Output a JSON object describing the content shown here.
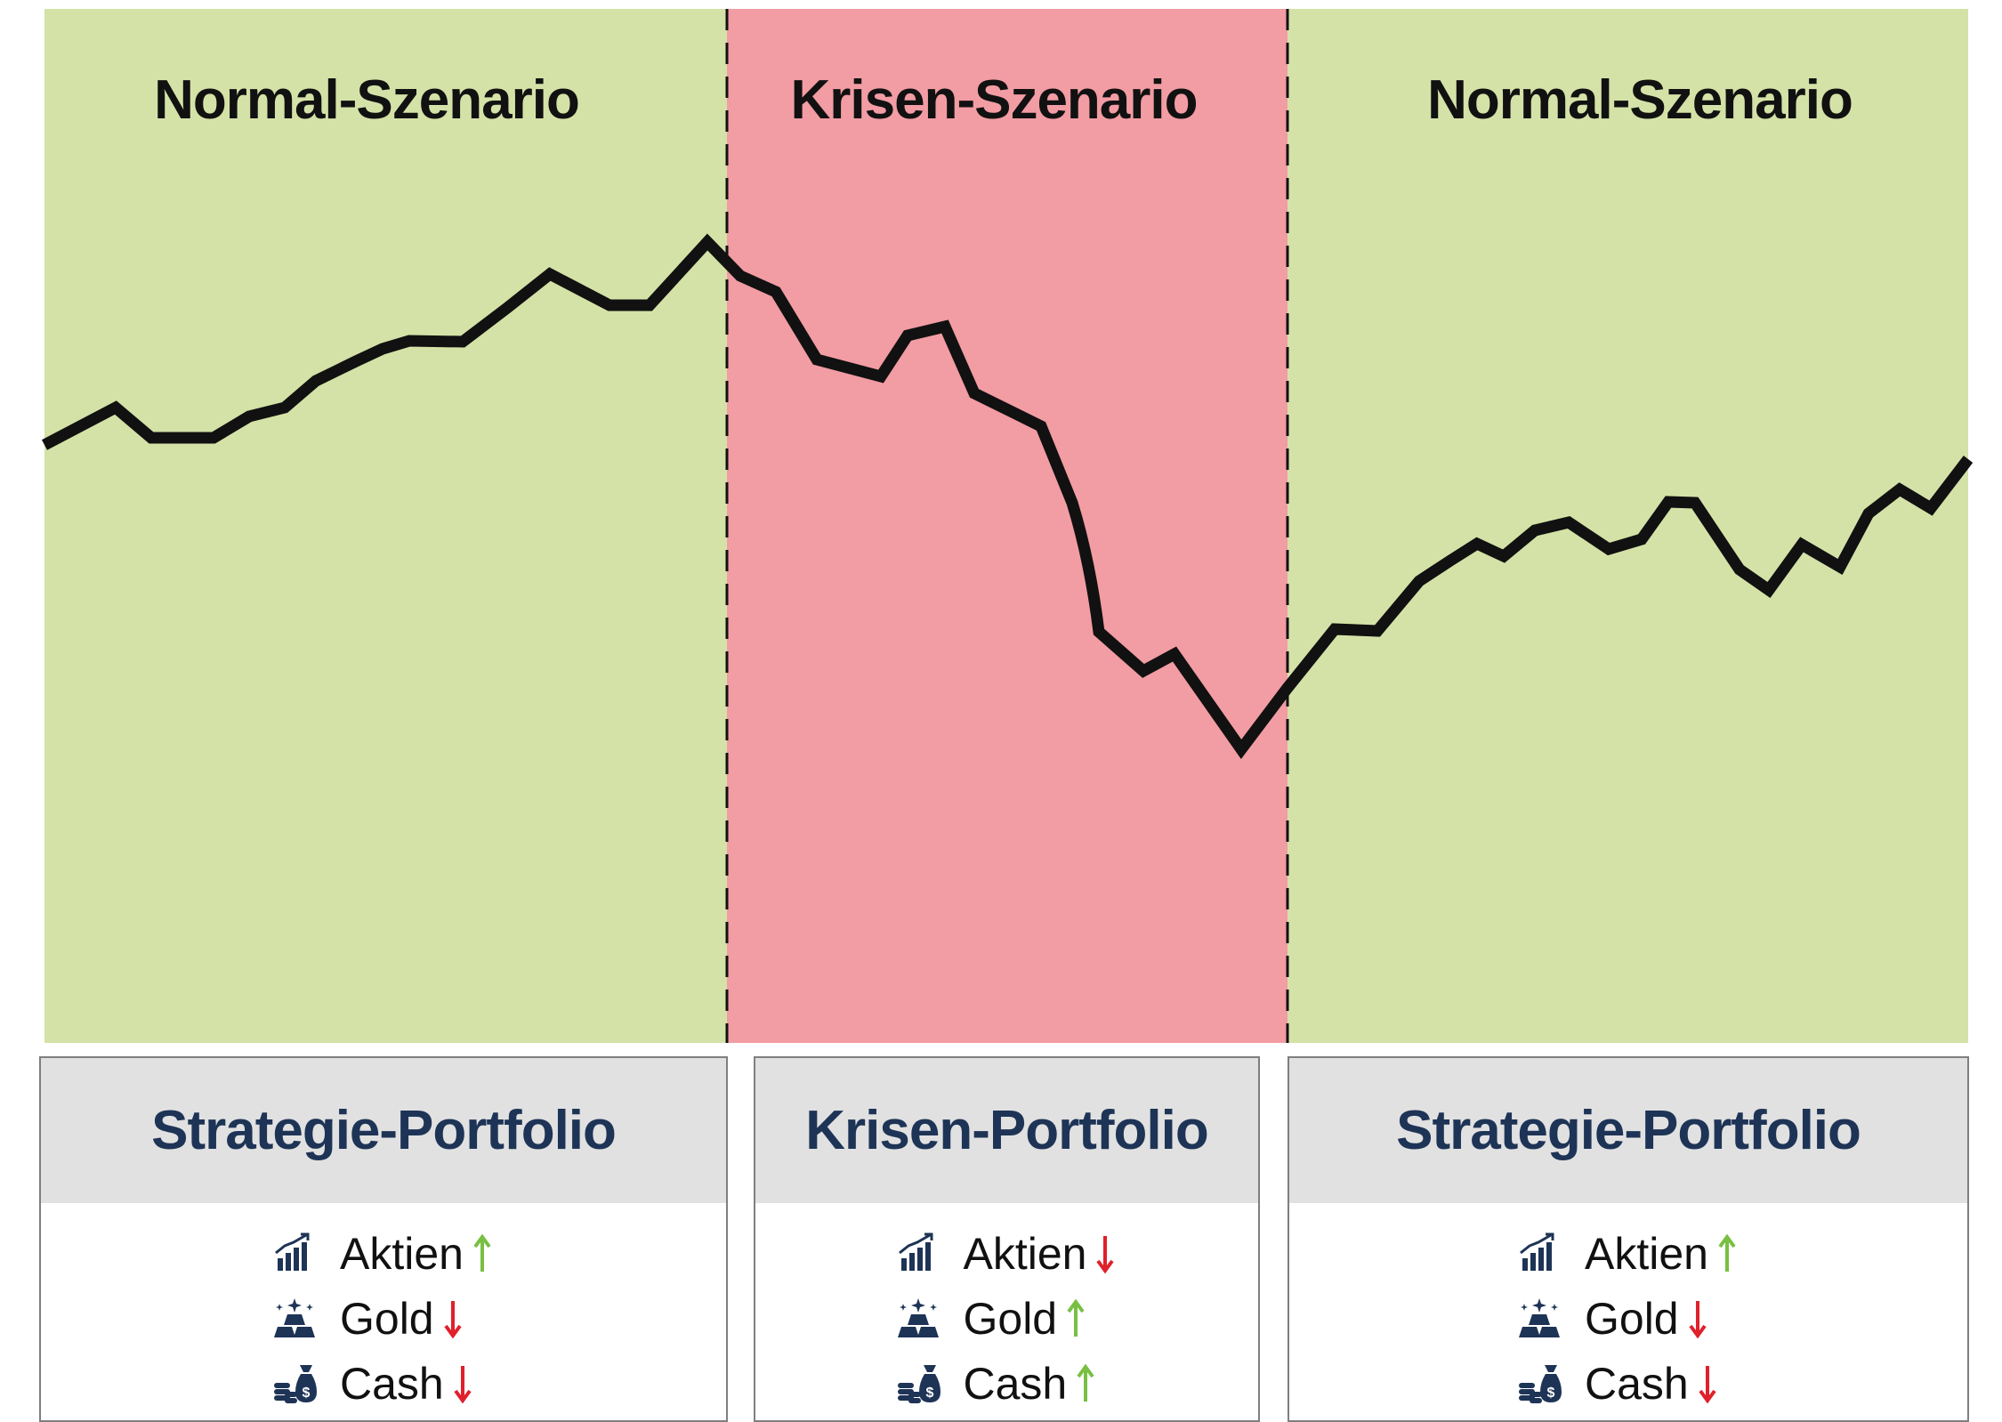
{
  "colors": {
    "normal_bg": "#d4e2a7",
    "crisis_bg": "#f29ca3",
    "line": "#111111",
    "title_text": "#111111",
    "card_title": "#1e3456",
    "card_header_bg": "#e1e1e1",
    "icon": "#1e3456",
    "arrow_up": "#78bf42",
    "arrow_down": "#e0202b"
  },
  "zones": [
    {
      "title": "Normal-Szenario",
      "kind": "normal"
    },
    {
      "title": "Krisen-Szenario",
      "kind": "crisis"
    },
    {
      "title": "Normal-Szenario",
      "kind": "normal"
    }
  ],
  "cards": [
    {
      "title": "Strategie-Portfolio",
      "assets": [
        {
          "label": "Aktien",
          "icon": "bar-chart-icon",
          "direction": "up"
        },
        {
          "label": "Gold",
          "icon": "gold-bars-icon",
          "direction": "down"
        },
        {
          "label": "Cash",
          "icon": "money-bag-icon",
          "direction": "down"
        }
      ]
    },
    {
      "title": "Krisen-Portfolio",
      "assets": [
        {
          "label": "Aktien",
          "icon": "bar-chart-icon",
          "direction": "down"
        },
        {
          "label": "Gold",
          "icon": "gold-bars-icon",
          "direction": "up"
        },
        {
          "label": "Cash",
          "icon": "money-bag-icon",
          "direction": "up"
        }
      ]
    },
    {
      "title": "Strategie-Portfolio",
      "assets": [
        {
          "label": "Aktien",
          "icon": "bar-chart-icon",
          "direction": "up"
        },
        {
          "label": "Gold",
          "icon": "gold-bars-icon",
          "direction": "down"
        },
        {
          "label": "Cash",
          "icon": "money-bag-icon",
          "direction": "down"
        }
      ]
    }
  ]
}
